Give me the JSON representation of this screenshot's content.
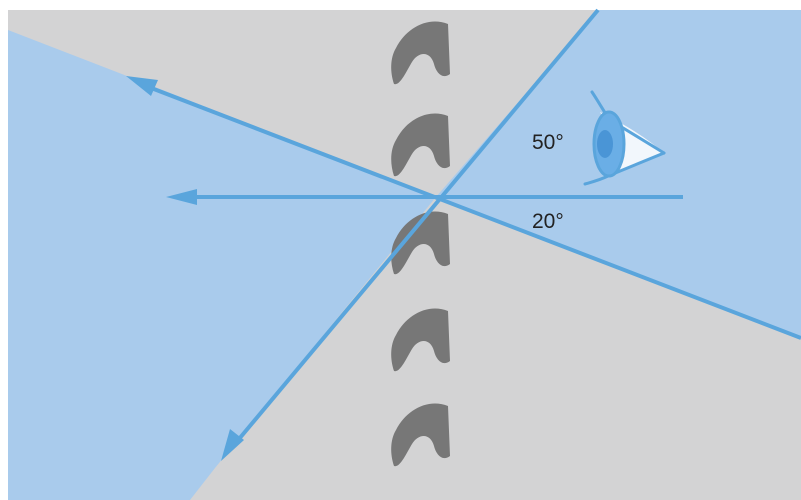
{
  "diagram": {
    "colors": {
      "background": "#d3d3d4",
      "region_fill": "#a9cbec",
      "ray": "#5aa5dc",
      "hook_shape": "#777777",
      "eye_outline": "#5aa5dc",
      "eye_white": "#f2f7fc",
      "iris": "#6aaee6",
      "pupil": "#4a95d6",
      "label_text": "#222222"
    },
    "angles": {
      "upper_label": "50°",
      "lower_label": "20°"
    },
    "shapes": {
      "hook_count": 5,
      "hook_icon": "hook-shape-icon",
      "eye_icon": "eye-icon",
      "arrowhead_icon": "arrowhead-icon"
    }
  }
}
